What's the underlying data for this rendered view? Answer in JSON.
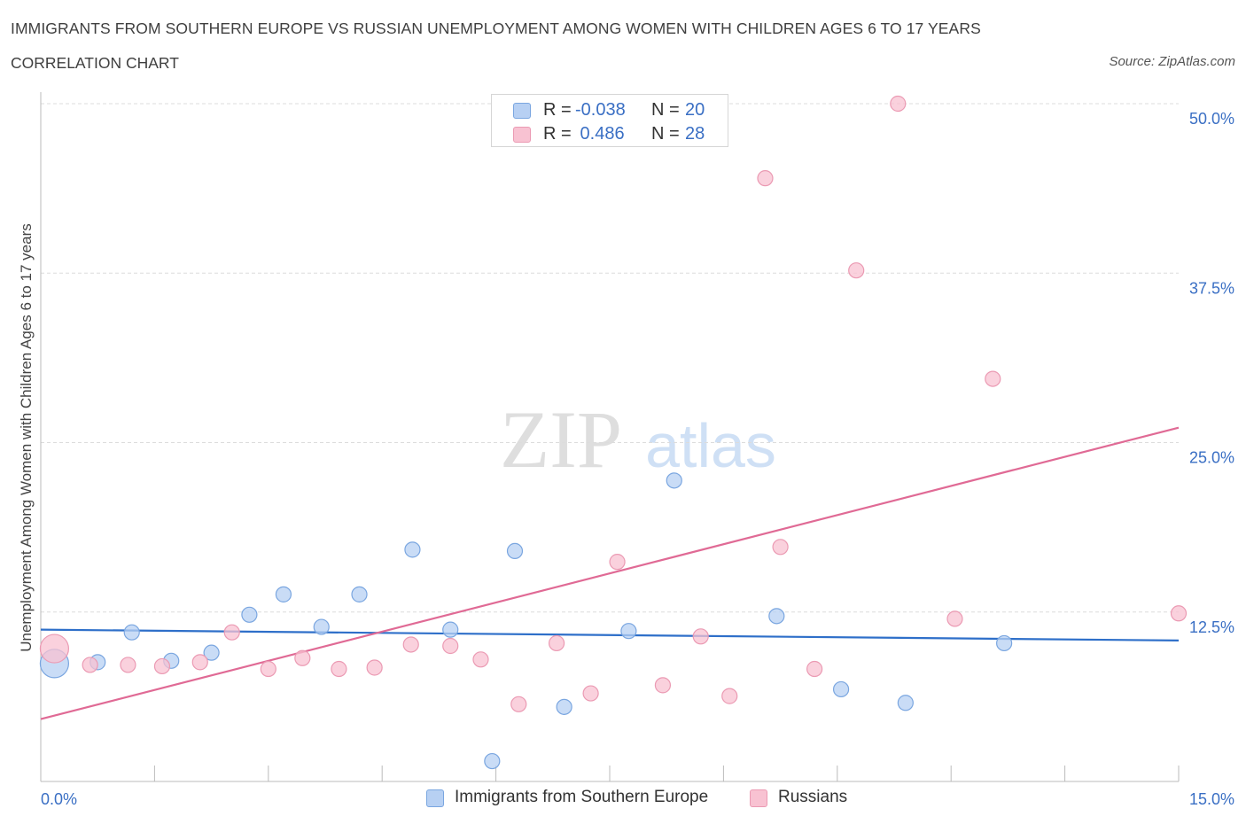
{
  "title": "IMMIGRANTS FROM SOUTHERN EUROPE VS RUSSIAN UNEMPLOYMENT AMONG WOMEN WITH CHILDREN AGES 6 TO 17 YEARS",
  "subtitle": "CORRELATION CHART",
  "source": "Source: ZipAtlas.com",
  "watermark": {
    "zip": "ZIP",
    "atlas": "atlas"
  },
  "colors": {
    "blue_fill": "#b7d0f3",
    "blue_stroke": "#7aa6e0",
    "blue_line": "#2e6fc9",
    "pink_fill": "#f8c2d2",
    "pink_stroke": "#eb9ab3",
    "pink_line": "#e06a95",
    "tick_label": "#3a6fc4",
    "grid": "#dcdcdc"
  },
  "stats_legend": {
    "r_label": "R =",
    "n_label": "N =",
    "rows": [
      {
        "series": "blue",
        "r": "-0.038",
        "n": "20"
      },
      {
        "series": "pink",
        "r": " 0.486",
        "n": "28"
      }
    ]
  },
  "chart_data": {
    "type": "scatter",
    "xlabel": "",
    "ylabel": "Unemployment Among Women with Children Ages 6 to 17 years",
    "xlim": [
      0,
      15
    ],
    "ylim": [
      0,
      50
    ],
    "x_tick_labels": {
      "min": "0.0%",
      "max": "15.0%"
    },
    "y_ticks": [
      {
        "value": 12.5,
        "label": "12.5%"
      },
      {
        "value": 25.0,
        "label": "25.0%"
      },
      {
        "value": 37.5,
        "label": "37.5%"
      },
      {
        "value": 50.0,
        "label": "50.0%"
      }
    ],
    "grid": true,
    "legend_position": "bottom-center",
    "series": [
      {
        "name": "Immigrants from Southern Europe",
        "color": "blue",
        "points": [
          {
            "x": 0.18,
            "y": 8.7,
            "size": "large"
          },
          {
            "x": 0.75,
            "y": 8.8
          },
          {
            "x": 1.2,
            "y": 11.0
          },
          {
            "x": 1.72,
            "y": 8.9
          },
          {
            "x": 2.25,
            "y": 9.5
          },
          {
            "x": 2.75,
            "y": 12.3
          },
          {
            "x": 3.2,
            "y": 13.8
          },
          {
            "x": 3.7,
            "y": 11.4
          },
          {
            "x": 4.2,
            "y": 13.8
          },
          {
            "x": 4.9,
            "y": 17.1
          },
          {
            "x": 5.4,
            "y": 11.2
          },
          {
            "x": 5.95,
            "y": 1.5
          },
          {
            "x": 6.25,
            "y": 17.0
          },
          {
            "x": 6.9,
            "y": 5.5
          },
          {
            "x": 7.75,
            "y": 11.1
          },
          {
            "x": 8.35,
            "y": 22.2
          },
          {
            "x": 9.7,
            "y": 12.2
          },
          {
            "x": 10.55,
            "y": 6.8
          },
          {
            "x": 11.4,
            "y": 5.8
          },
          {
            "x": 12.7,
            "y": 10.2
          }
        ],
        "trend": {
          "x0": 0.0,
          "y0": 11.2,
          "x1": 15.0,
          "y1": 10.4
        }
      },
      {
        "name": "Russians",
        "color": "pink",
        "points": [
          {
            "x": 0.18,
            "y": 9.8,
            "size": "large"
          },
          {
            "x": 0.65,
            "y": 8.6
          },
          {
            "x": 1.15,
            "y": 8.6
          },
          {
            "x": 1.6,
            "y": 8.5
          },
          {
            "x": 2.1,
            "y": 8.8
          },
          {
            "x": 2.52,
            "y": 11.0
          },
          {
            "x": 3.0,
            "y": 8.3
          },
          {
            "x": 3.45,
            "y": 9.1
          },
          {
            "x": 3.93,
            "y": 8.3
          },
          {
            "x": 4.4,
            "y": 8.4
          },
          {
            "x": 4.88,
            "y": 10.1
          },
          {
            "x": 5.4,
            "y": 10.0
          },
          {
            "x": 5.8,
            "y": 9.0
          },
          {
            "x": 6.3,
            "y": 5.7
          },
          {
            "x": 6.8,
            "y": 10.2
          },
          {
            "x": 7.25,
            "y": 6.5
          },
          {
            "x": 7.6,
            "y": 16.2
          },
          {
            "x": 8.2,
            "y": 7.1
          },
          {
            "x": 8.7,
            "y": 10.7
          },
          {
            "x": 9.08,
            "y": 6.3
          },
          {
            "x": 9.55,
            "y": 44.5
          },
          {
            "x": 9.75,
            "y": 17.3
          },
          {
            "x": 10.2,
            "y": 8.3
          },
          {
            "x": 10.75,
            "y": 37.7
          },
          {
            "x": 11.3,
            "y": 50.0
          },
          {
            "x": 12.05,
            "y": 12.0
          },
          {
            "x": 12.55,
            "y": 29.7
          },
          {
            "x": 15.0,
            "y": 12.4
          }
        ],
        "trend": {
          "x0": 0.0,
          "y0": 4.6,
          "x1": 15.0,
          "y1": 26.1
        }
      }
    ]
  }
}
